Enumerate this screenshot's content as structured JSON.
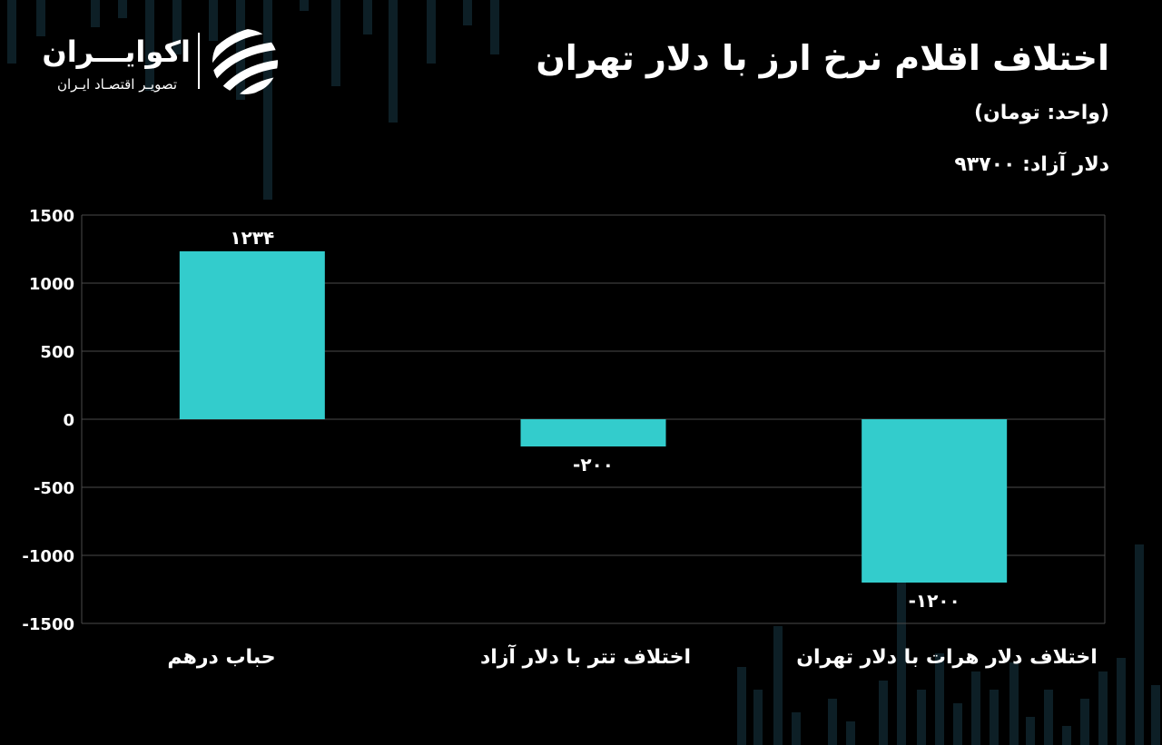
{
  "title": "اختلاف اقلام نرخ ارز با دلار تهران",
  "subtitle": "(واحد: تومان)",
  "note": {
    "label": "دلار آزاد:",
    "value": "۹۳۷۰۰"
  },
  "logo": {
    "name": "اکوایـــران",
    "tagline": "تصویـر اقتصـاد ایـران"
  },
  "colors": {
    "background": "#000000",
    "bar": "#33CCCC",
    "grid": "#4a4a4a",
    "text": "#ffffff",
    "decor": "#0d1f26"
  },
  "chart_data": {
    "type": "bar",
    "categories": [
      "حباب درهم",
      "اختلاف تتر با دلار آزاد",
      "اختلاف دلار هرات با دلار تهران"
    ],
    "values": [
      1234,
      -200,
      -1200
    ],
    "data_labels": [
      "۱۲۳۴",
      "-۲۰۰",
      "-۱۲۰۰"
    ],
    "ylim": [
      -1500,
      1500
    ],
    "yticks": [
      1500,
      1000,
      500,
      0,
      -500,
      -1000,
      -1500
    ],
    "ytick_labels": [
      "1500",
      "1000",
      "500",
      "0",
      "-500",
      "-1000",
      "-1500"
    ],
    "grid": true,
    "legend": "none"
  }
}
